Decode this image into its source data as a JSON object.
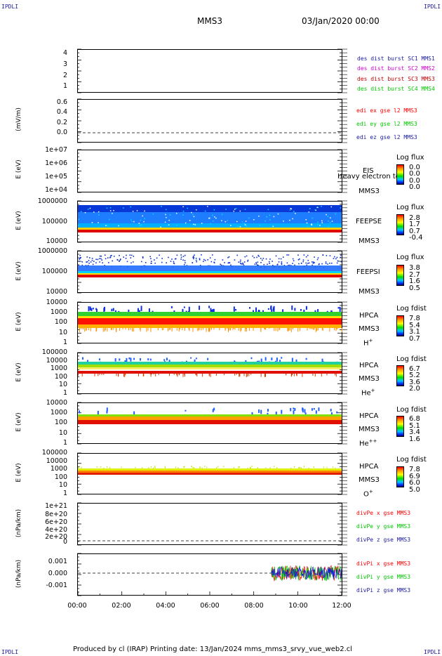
{
  "header": {
    "corner_tl": "IPDLI",
    "corner_tr": "IPDLI",
    "corner_bl": "IPDLI",
    "corner_br": "IPDLI",
    "spacecraft": "MMS3",
    "date": "03/Jan/2020 00:00"
  },
  "footer": {
    "text": "Produced by cl (IRAP)   Printing date: 13/Jan/2024   mms_mms3_srvy_vue_web2.cl"
  },
  "colors": {
    "red": "#ff0000",
    "green": "#00c800",
    "blue": "#1a1aa0",
    "magenta": "#d000d0"
  },
  "panels": {
    "burst": {
      "ticks": [
        "4",
        "3",
        "2",
        "1"
      ],
      "legend": [
        {
          "text": "des dist burst SC1 MMS1",
          "color": "#1a1aa0"
        },
        {
          "text": "des dist burst SC2 MMS2",
          "color": "#d000d0"
        },
        {
          "text": "des dist burst SC3 MMS3",
          "color": "#c00000"
        },
        {
          "text": "des dist burst SC4 MMS4",
          "color": "#00c800"
        }
      ]
    },
    "edi": {
      "ylabel": "(mV/m)",
      "ticks": [
        "0.6",
        "0.4",
        "0.2",
        "0.0"
      ],
      "legend": [
        {
          "text": "edi ex gse l2 MMS3",
          "color": "#ff0000"
        },
        {
          "text": "edi ey gse l2 MMS3",
          "color": "#00c800"
        },
        {
          "text": "edi ez gse l2 MMS3",
          "color": "#1a1aa0"
        }
      ]
    },
    "eis": {
      "ylabel": "E (eV)",
      "ticks": [
        "1e+07",
        "1e+06",
        "1e+05",
        "1e+04"
      ],
      "inst": [
        "EIS",
        "MMS3"
      ],
      "overlay": "Heavy electron to",
      "cbar_title": "Log flux",
      "cbar_vals": [
        "0.0",
        "0.0",
        "0.0",
        "0.0"
      ]
    },
    "feepse": {
      "ylabel": "E (eV)",
      "ticks": [
        "1000000",
        "100000",
        "10000"
      ],
      "inst": [
        "FEEPSE",
        "MMS3"
      ],
      "cbar_title": "Log flux",
      "cbar_vals": [
        "2.8",
        "1.7",
        "0.7",
        "-0.4"
      ]
    },
    "feepsi": {
      "ylabel": "E (eV)",
      "ticks": [
        "1000000",
        "100000",
        "10000"
      ],
      "inst": [
        "FEEPSI",
        "MMS3"
      ],
      "cbar_title": "Log flux",
      "cbar_vals": [
        "3.8",
        "2.7",
        "1.6",
        "0.5"
      ]
    },
    "hpca_h": {
      "ylabel": "E (eV)",
      "ticks": [
        "10000",
        "1000",
        "100",
        "10",
        "1"
      ],
      "inst": [
        "HPCA",
        "MMS3"
      ],
      "species": "H",
      "charge": "+",
      "cbar_title": "Log fdist",
      "cbar_vals": [
        "7.8",
        "5.4",
        "3.1",
        "0.7"
      ]
    },
    "hpca_he": {
      "ylabel": "E (eV)",
      "ticks": [
        "100000",
        "10000",
        "1000",
        "100",
        "10",
        "1"
      ],
      "inst": [
        "HPCA",
        "MMS3"
      ],
      "species": "He",
      "charge": "+",
      "cbar_title": "Log fdist",
      "cbar_vals": [
        "6.7",
        "5.2",
        "3.6",
        "2.0"
      ]
    },
    "hpca_hepp": {
      "ylabel": "E (eV)",
      "ticks": [
        "10000",
        "1000",
        "100",
        "10",
        "1"
      ],
      "inst": [
        "HPCA",
        "MMS3"
      ],
      "species": "He",
      "charge": "++",
      "cbar_title": "Log fdist",
      "cbar_vals": [
        "6.8",
        "5.1",
        "3.4",
        "1.6"
      ]
    },
    "hpca_o": {
      "ylabel": "E (eV)",
      "ticks": [
        "100000",
        "10000",
        "1000",
        "100",
        "10",
        "1"
      ],
      "inst": [
        "HPCA",
        "MMS3"
      ],
      "species": "O",
      "charge": "+",
      "cbar_title": "Log fdist",
      "cbar_vals": [
        "7.8",
        "6.9",
        "6.0",
        "5.0"
      ]
    },
    "divpe": {
      "ylabel": "(nPa/km)",
      "ticks": [
        "1e+21",
        "8e+20",
        "6e+20",
        "4e+20",
        "2e+20",
        "0"
      ],
      "legend": [
        {
          "text": "divPe x gse MMS3",
          "color": "#ff0000"
        },
        {
          "text": "divPe y gse MMS3",
          "color": "#00c800"
        },
        {
          "text": "divPe z gse MMS3",
          "color": "#1a1aa0"
        }
      ]
    },
    "divpi": {
      "ylabel": "(nPa/km)",
      "ticks": [
        "0.001",
        "0.000",
        "-0.001"
      ],
      "legend": [
        {
          "text": "divPi x gse MMS3",
          "color": "#ff0000"
        },
        {
          "text": "divPi y gse MMS3",
          "color": "#00c800"
        },
        {
          "text": "divPi z gse MMS3",
          "color": "#1a1aa0"
        }
      ]
    }
  },
  "chart_data": {
    "type": "heatmap",
    "x_ticks": [
      "00:00",
      "02:00",
      "04:00",
      "06:00",
      "08:00",
      "10:00",
      "12:00"
    ],
    "x_range_hours": [
      0,
      12
    ],
    "divpi_active_start_hours": 8.8,
    "spectrograms": [
      {
        "name": "FEEPSE",
        "band_eV": [
          30000,
          1000000
        ],
        "peak_eV": 40000
      },
      {
        "name": "FEEPSI",
        "band_eV": [
          60000,
          600000
        ],
        "peak_eV": 65000
      },
      {
        "name": "HPCA H+",
        "band_eV": [
          10,
          3000
        ],
        "peak_eV": 400
      },
      {
        "name": "HPCA He+",
        "band_eV": [
          300,
          3000
        ],
        "peak_eV": 400
      },
      {
        "name": "HPCA He++",
        "band_eV": [
          300,
          3000
        ],
        "peak_eV": 400
      },
      {
        "name": "HPCA O+",
        "band_eV": [
          300,
          1000
        ],
        "peak_eV": 400
      }
    ]
  }
}
